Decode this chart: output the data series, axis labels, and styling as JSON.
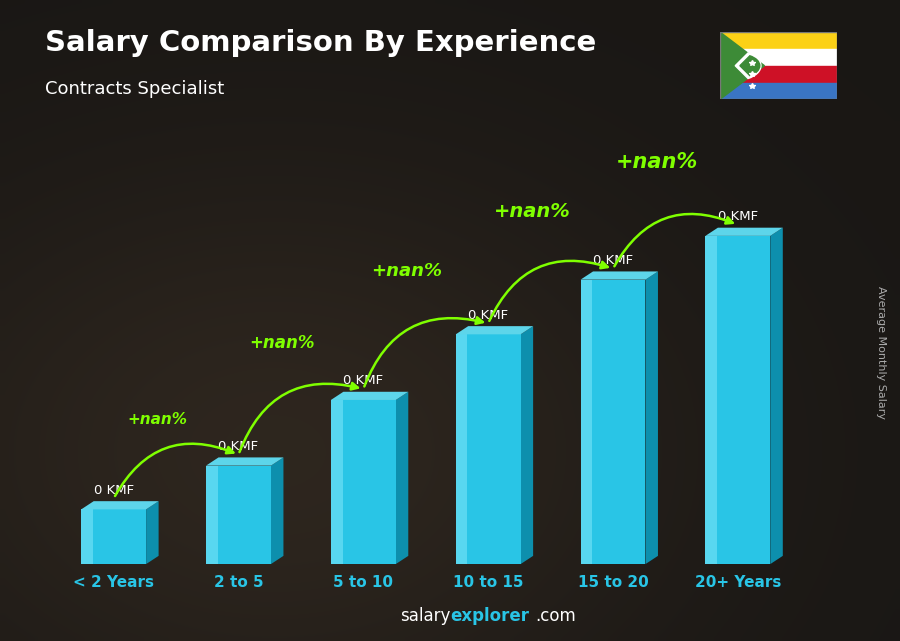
{
  "title": "Salary Comparison By Experience",
  "subtitle": "Contracts Specialist",
  "ylabel": "Average Monthly Salary",
  "xlabel_labels": [
    "< 2 Years",
    "2 to 5",
    "5 to 10",
    "10 to 15",
    "15 to 20",
    "20+ Years"
  ],
  "bar_label": "0 KMF",
  "pct_label": "+nan%",
  "bar_face_color": "#29c5e6",
  "bar_light_color": "#6de0f5",
  "bar_side_color": "#0d8fad",
  "bar_top_color": "#5dd5ea",
  "bg_color": "#2a2b30",
  "title_color": "#ffffff",
  "subtitle_color": "#ffffff",
  "tick_color": "#29c5e6",
  "pct_color": "#7fff00",
  "arrow_color": "#7fff00",
  "label_color": "#ffffff",
  "footer_salary_color": "#ffffff",
  "footer_explorer_color": "#29c5e6",
  "footer_com_color": "#ffffff",
  "bar_heights": [
    1.0,
    1.8,
    3.0,
    4.2,
    5.2,
    6.0
  ],
  "bar_width": 0.52,
  "depth_x": 0.1,
  "depth_y": 0.15,
  "ylim": [
    0,
    7.5
  ],
  "xlim": [
    -0.55,
    5.65
  ]
}
